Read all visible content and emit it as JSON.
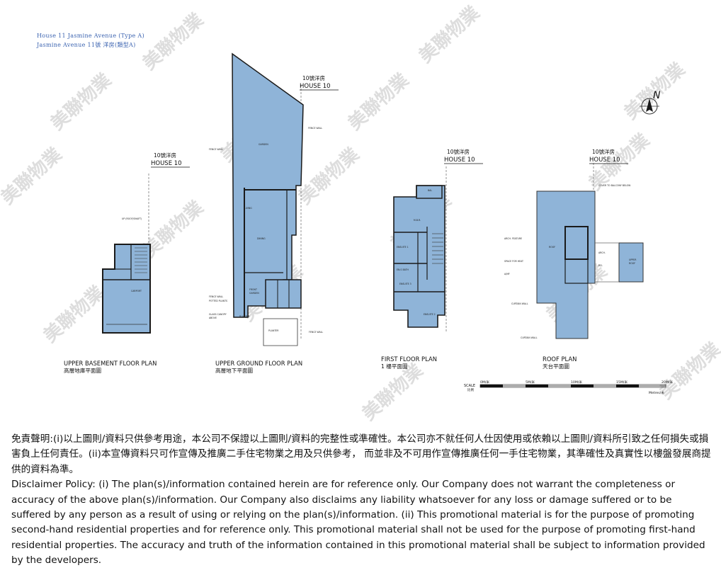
{
  "header": {
    "line1": "House 11 Jasmine Avenue (Type A)",
    "line2": "Jasmine Avenue 11號 洋房(類型A)"
  },
  "colors": {
    "fill": "#8fb4d8",
    "line": "#1a1a1a",
    "watermark": "#d2d2d2"
  },
  "house_tags": [
    {
      "cn": "10號洋房",
      "en": "HOUSE 10"
    },
    {
      "cn": "10號洋房",
      "en": "HOUSE 10"
    },
    {
      "cn": "10號洋房",
      "en": "HOUSE 10"
    },
    {
      "cn": "10號洋房",
      "en": "HOUSE 10"
    }
  ],
  "plans": [
    {
      "en": "UPPER BASEMENT FLOOR PLAN",
      "cn": "高層地庫平面圖"
    },
    {
      "en": "UPPER GROUND FLOOR PLAN",
      "cn": "高層地下平面圖"
    },
    {
      "en": "FIRST FLOOR PLAN",
      "cn": "1 樓平面圖"
    },
    {
      "en": "ROOF PLAN",
      "cn": "天台平面圖"
    }
  ],
  "compass": "N",
  "scale": {
    "label": "SCALE",
    "label_cn": "比例",
    "marks": [
      "0M/米",
      "5M/米",
      "10M/米",
      "15M/米",
      "20M/米"
    ],
    "unit": "Metres/米"
  },
  "watermark": "美聯物業",
  "disclaimer": {
    "cn": "免責聲明:(i)以上圖則/資料只供參考用途，本公司不保證以上圖則/資料的完整性或準確性。本公司亦不就任何人仕因使用或依賴以上圖則/資料所引致之任何損失或損害負上任何責任。(ii)本宣傳資料只可作宣傳及推廣二手住宅物業之用及只供參考， 而並非及不可用作宣傳推廣任何一手住宅物業，其準確性及真實性以樓盤發展商提供的資料為準。",
    "en": "Disclaimer Policy: (i) The plan(s)/information contained herein are for reference only. Our Company does not warrant the completeness or accuracy of the above plan(s)/information. Our Company also disclaims any liability whatsoever for any loss or damage suffered or to be suffered by any person as a result of using or relying on the plan(s)/information. (ii) This promotional material is for the purpose of promoting second-hand residential properties and for reference only. This promotional material shall not be used for the purpose of promoting first-hand residential properties. The accuracy and truth of the information contained in this promotional material shall be subject to information provided by the developers."
  }
}
